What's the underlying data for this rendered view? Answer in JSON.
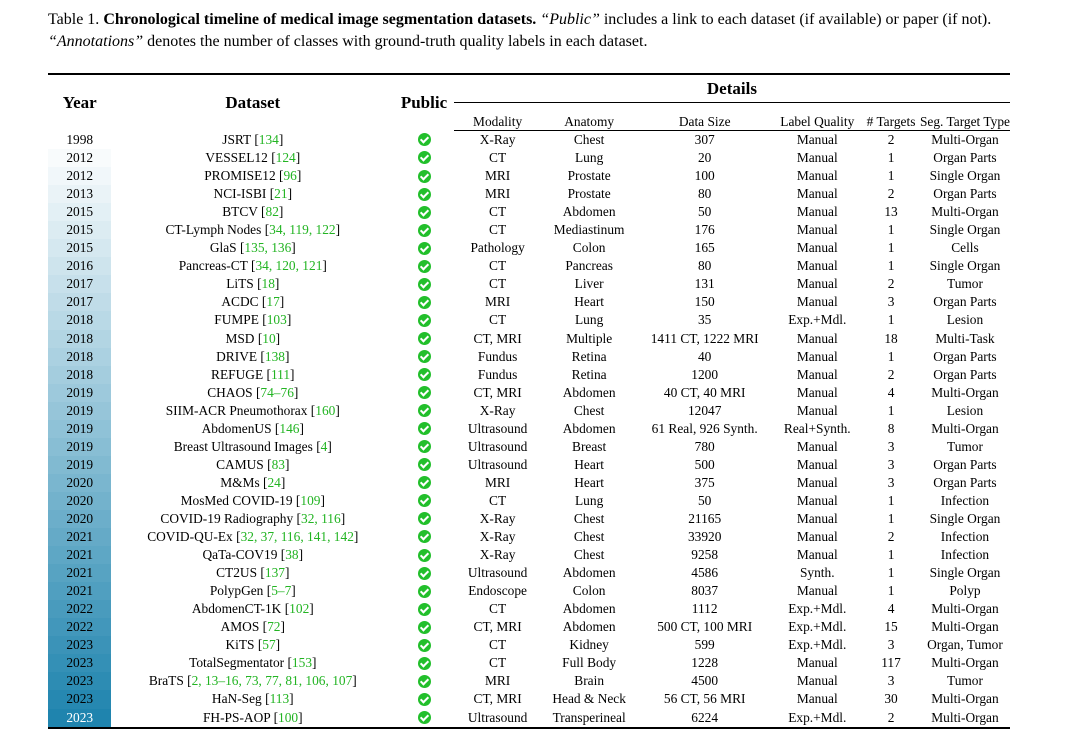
{
  "caption": {
    "label": "Table 1.",
    "title": "Chronological timeline of medical image segmentation datasets.",
    "public_term": "“Public”",
    "public_desc": " includes a link to each dataset (if available) or paper (if not). ",
    "annot_term": "“Annotations”",
    "annot_desc": " denotes the number of classes with ground-truth quality labels in each dataset."
  },
  "headers": {
    "year": "Year",
    "dataset": "Dataset",
    "public": "Public",
    "details": "Details",
    "modality": "Modality",
    "anatomy": "Anatomy",
    "data_size": "Data Size",
    "label_quality": "Label Quality",
    "targets": "# Targets",
    "seg_type": "Seg. Target Type"
  },
  "colors": {
    "ref_link": "#22b422",
    "check": "#22bf2b",
    "year_gradient_top": "#ffffff",
    "year_gradient_bottom": "#1f84ae"
  },
  "public_icon": "check-circle-icon",
  "rows": [
    {
      "year": "1998",
      "name": "JSRT",
      "refs": "134",
      "modality": "X-Ray",
      "anatomy": "Chest",
      "size": "307",
      "quality": "Manual",
      "targets": "2",
      "type": "Multi-Organ"
    },
    {
      "year": "2012",
      "name": "VESSEL12",
      "refs": "124",
      "modality": "CT",
      "anatomy": "Lung",
      "size": "20",
      "quality": "Manual",
      "targets": "1",
      "type": "Organ Parts"
    },
    {
      "year": "2012",
      "name": "PROMISE12",
      "refs": "96",
      "modality": "MRI",
      "anatomy": "Prostate",
      "size": "100",
      "quality": "Manual",
      "targets": "1",
      "type": "Single Organ"
    },
    {
      "year": "2013",
      "name": "NCI-ISBI",
      "refs": "21",
      "modality": "MRI",
      "anatomy": "Prostate",
      "size": "80",
      "quality": "Manual",
      "targets": "2",
      "type": "Organ Parts"
    },
    {
      "year": "2015",
      "name": "BTCV",
      "refs": "82",
      "modality": "CT",
      "anatomy": "Abdomen",
      "size": "50",
      "quality": "Manual",
      "targets": "13",
      "type": "Multi-Organ"
    },
    {
      "year": "2015",
      "name": "CT-Lymph Nodes",
      "refs": "34, 119, 122",
      "modality": "CT",
      "anatomy": "Mediastinum",
      "size": "176",
      "quality": "Manual",
      "targets": "1",
      "type": "Single Organ"
    },
    {
      "year": "2015",
      "name": "GlaS",
      "refs": "135, 136",
      "modality": "Pathology",
      "anatomy": "Colon",
      "size": "165",
      "quality": "Manual",
      "targets": "1",
      "type": "Cells"
    },
    {
      "year": "2016",
      "name": "Pancreas-CT",
      "refs": "34, 120, 121",
      "modality": "CT",
      "anatomy": "Pancreas",
      "size": "80",
      "quality": "Manual",
      "targets": "1",
      "type": "Single Organ"
    },
    {
      "year": "2017",
      "name": "LiTS",
      "refs": "18",
      "modality": "CT",
      "anatomy": "Liver",
      "size": "131",
      "quality": "Manual",
      "targets": "2",
      "type": "Tumor"
    },
    {
      "year": "2017",
      "name": "ACDC",
      "refs": "17",
      "modality": "MRI",
      "anatomy": "Heart",
      "size": "150",
      "quality": "Manual",
      "targets": "3",
      "type": "Organ Parts"
    },
    {
      "year": "2018",
      "name": "FUMPE",
      "refs": "103",
      "modality": "CT",
      "anatomy": "Lung",
      "size": "35",
      "quality": "Exp.+Mdl.",
      "targets": "1",
      "type": "Lesion"
    },
    {
      "year": "2018",
      "name": "MSD",
      "refs": "10",
      "modality": "CT, MRI",
      "anatomy": "Multiple",
      "size": "1411 CT, 1222 MRI",
      "quality": "Manual",
      "targets": "18",
      "type": "Multi-Task"
    },
    {
      "year": "2018",
      "name": "DRIVE",
      "refs": "138",
      "modality": "Fundus",
      "anatomy": "Retina",
      "size": "40",
      "quality": "Manual",
      "targets": "1",
      "type": "Organ Parts"
    },
    {
      "year": "2018",
      "name": "REFUGE",
      "refs": "111",
      "modality": "Fundus",
      "anatomy": "Retina",
      "size": "1200",
      "quality": "Manual",
      "targets": "2",
      "type": "Organ Parts"
    },
    {
      "year": "2019",
      "name": "CHAOS",
      "refs": "74–76",
      "modality": "CT, MRI",
      "anatomy": "Abdomen",
      "size": "40 CT, 40 MRI",
      "quality": "Manual",
      "targets": "4",
      "type": "Multi-Organ"
    },
    {
      "year": "2019",
      "name": "SIIM-ACR Pneumothorax",
      "refs": "160",
      "modality": "X-Ray",
      "anatomy": "Chest",
      "size": "12047",
      "quality": "Manual",
      "targets": "1",
      "type": "Lesion"
    },
    {
      "year": "2019",
      "name": "AbdomenUS",
      "refs": "146",
      "modality": "Ultrasound",
      "anatomy": "Abdomen",
      "size": "61 Real, 926 Synth.",
      "quality": "Real+Synth.",
      "targets": "8",
      "type": "Multi-Organ"
    },
    {
      "year": "2019",
      "name": "Breast Ultrasound Images",
      "refs": "4",
      "modality": "Ultrasound",
      "anatomy": "Breast",
      "size": "780",
      "quality": "Manual",
      "targets": "3",
      "type": "Tumor"
    },
    {
      "year": "2019",
      "name": "CAMUS",
      "refs": "83",
      "modality": "Ultrasound",
      "anatomy": "Heart",
      "size": "500",
      "quality": "Manual",
      "targets": "3",
      "type": "Organ Parts"
    },
    {
      "year": "2020",
      "name": "M&Ms",
      "refs": "24",
      "modality": "MRI",
      "anatomy": "Heart",
      "size": "375",
      "quality": "Manual",
      "targets": "3",
      "type": "Organ Parts"
    },
    {
      "year": "2020",
      "name": "MosMed COVID-19",
      "refs": "109",
      "modality": "CT",
      "anatomy": "Lung",
      "size": "50",
      "quality": "Manual",
      "targets": "1",
      "type": "Infection"
    },
    {
      "year": "2020",
      "name": "COVID-19 Radiography",
      "refs": "32, 116",
      "modality": "X-Ray",
      "anatomy": "Chest",
      "size": "21165",
      "quality": "Manual",
      "targets": "1",
      "type": "Single Organ"
    },
    {
      "year": "2021",
      "name": "COVID-QU-Ex",
      "refs": "32, 37, 116, 141, 142",
      "modality": "X-Ray",
      "anatomy": "Chest",
      "size": "33920",
      "quality": "Manual",
      "targets": "2",
      "type": "Infection"
    },
    {
      "year": "2021",
      "name": "QaTa-COV19",
      "refs": "38",
      "modality": "X-Ray",
      "anatomy": "Chest",
      "size": "9258",
      "quality": "Manual",
      "targets": "1",
      "type": "Infection"
    },
    {
      "year": "2021",
      "name": "CT2US",
      "refs": "137",
      "modality": "Ultrasound",
      "anatomy": "Abdomen",
      "size": "4586",
      "quality": "Synth.",
      "targets": "1",
      "type": "Single Organ"
    },
    {
      "year": "2021",
      "name": "PolypGen",
      "refs": "5–7",
      "modality": "Endoscope",
      "anatomy": "Colon",
      "size": "8037",
      "quality": "Manual",
      "targets": "1",
      "type": "Polyp"
    },
    {
      "year": "2022",
      "name": "AbdomenCT-1K",
      "refs": "102",
      "modality": "CT",
      "anatomy": "Abdomen",
      "size": "1112",
      "quality": "Exp.+Mdl.",
      "targets": "4",
      "type": "Multi-Organ"
    },
    {
      "year": "2022",
      "name": "AMOS",
      "refs": "72",
      "modality": "CT, MRI",
      "anatomy": "Abdomen",
      "size": "500 CT, 100 MRI",
      "quality": "Exp.+Mdl.",
      "targets": "15",
      "type": "Multi-Organ"
    },
    {
      "year": "2023",
      "name": "KiTS",
      "refs": "57",
      "modality": "CT",
      "anatomy": "Kidney",
      "size": "599",
      "quality": "Exp.+Mdl.",
      "targets": "3",
      "type": "Organ, Tumor"
    },
    {
      "year": "2023",
      "name": "TotalSegmentator",
      "refs": "153",
      "modality": "CT",
      "anatomy": "Full Body",
      "size": "1228",
      "quality": "Manual",
      "targets": "117",
      "type": "Multi-Organ"
    },
    {
      "year": "2023",
      "name": "BraTS",
      "refs": "2, 13–16, 73, 77, 81, 106, 107",
      "modality": "MRI",
      "anatomy": "Brain",
      "size": "4500",
      "quality": "Manual",
      "targets": "3",
      "type": "Tumor"
    },
    {
      "year": "2023",
      "name": "HaN-Seg",
      "refs": "113",
      "modality": "CT, MRI",
      "anatomy": "Head & Neck",
      "size": "56 CT, 56 MRI",
      "quality": "Manual",
      "targets": "30",
      "type": "Multi-Organ"
    },
    {
      "year": "2023",
      "name": "FH-PS-AOP",
      "refs": "100",
      "modality": "Ultrasound",
      "anatomy": "Transperineal",
      "size": "6224",
      "quality": "Exp.+Mdl.",
      "targets": "2",
      "type": "Multi-Organ"
    }
  ]
}
